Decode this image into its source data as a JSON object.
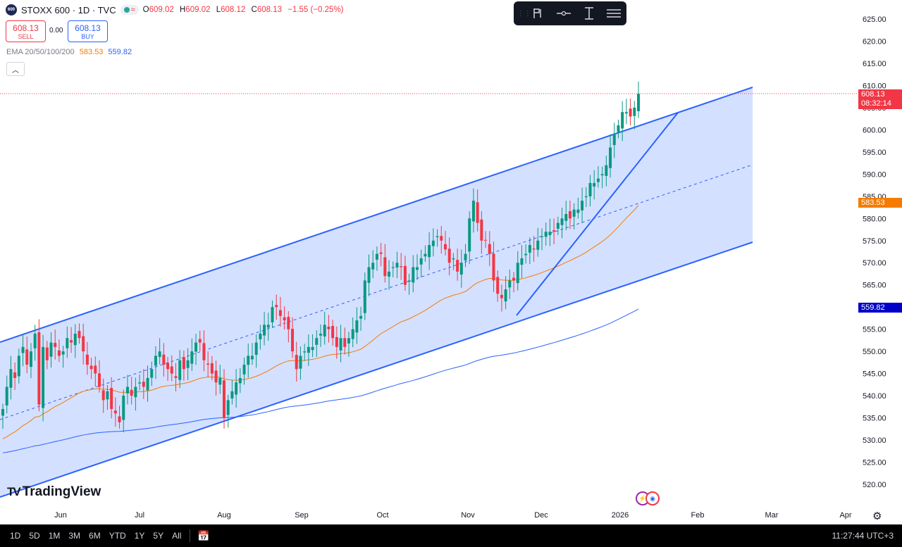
{
  "header": {
    "symbol_logo": "600",
    "title": "STOXX 600 · 1D · TVC",
    "market_status_icons": [
      "market-open-icon",
      "approximate-icon"
    ],
    "open_label": "O",
    "open": "609.02",
    "high_label": "H",
    "high": "609.02",
    "low_label": "L",
    "low": "608.12",
    "close_label": "C",
    "close": "608.13",
    "change": "−1.55 (−0.25%)"
  },
  "trade": {
    "sell_price": "608.13",
    "sell_label": "SELL",
    "spread": "0.00",
    "buy_price": "608.13",
    "buy_label": "BUY"
  },
  "indicator": {
    "name": "EMA 20/50/100/200",
    "ema50": "583.53",
    "ema200": "559.82"
  },
  "collapse_icon": "chevron-up-icon",
  "toolbar": {
    "items": [
      "drag-handle-icon",
      "flag-icon",
      "line-tool-icon",
      "measure-icon",
      "settings-lines-icon"
    ]
  },
  "price_labels": {
    "current_price": "608.13",
    "countdown": "08:32:14",
    "ema50_label": "583.53",
    "ema200_label": "559.82"
  },
  "colors": {
    "up": "#089981",
    "down": "#f23645",
    "channel": "#2962ff",
    "ema50": "#f57c00",
    "ema200": "#2962ff"
  },
  "branding": "TradingView",
  "bottom_bar": {
    "timeframes": [
      "1D",
      "5D",
      "1M",
      "3M",
      "6M",
      "YTD",
      "1Y",
      "5Y",
      "All"
    ],
    "clock": "11:27:44 UTC+3"
  },
  "chart_data": {
    "type": "candlestick",
    "title": "STOXX 600 · 1D · TVC",
    "xlabel": "",
    "ylabel": "",
    "x_ticks": [
      "Jun",
      "Jul",
      "Aug",
      "Sep",
      "Oct",
      "Nov",
      "Dec",
      "2026",
      "Feb",
      "Mar",
      "Apr"
    ],
    "y_ticks": [
      625,
      620,
      615,
      610,
      605,
      600,
      595,
      590,
      585,
      580,
      575,
      570,
      565,
      560,
      555,
      550,
      545,
      540,
      535,
      530,
      525,
      520
    ],
    "ylim": [
      518,
      628
    ],
    "grid": false,
    "legend": "top-left",
    "annotations": [
      "parallel channel",
      "rising trendline"
    ],
    "candles_close": [
      537,
      542,
      546,
      544,
      549,
      551,
      547,
      550,
      554,
      538,
      551,
      548,
      552,
      551,
      549,
      550,
      553,
      552,
      554,
      553,
      550,
      547,
      546,
      545,
      542,
      539,
      541,
      537,
      536,
      534,
      540,
      542,
      540,
      542,
      543,
      542,
      544,
      546,
      549,
      550,
      547,
      546,
      545,
      544,
      548,
      546,
      548,
      550,
      552,
      552,
      548,
      547,
      545,
      543,
      544,
      535,
      539,
      541,
      543,
      544,
      547,
      549,
      549,
      552,
      554,
      556,
      556,
      560,
      560,
      558,
      557,
      555,
      550,
      546,
      549,
      550,
      551,
      551,
      553,
      554,
      556,
      555,
      553,
      551,
      553,
      551,
      553,
      555,
      557,
      558,
      566,
      569,
      570,
      572,
      572,
      567,
      568,
      569,
      570,
      569,
      565,
      566,
      569,
      569,
      571,
      572,
      574,
      575,
      576,
      575,
      573,
      570,
      571,
      568,
      570,
      572,
      580,
      584,
      579,
      575,
      575,
      572,
      566,
      563,
      562,
      564,
      566,
      566,
      570,
      571,
      572,
      574,
      573,
      575,
      576,
      577,
      577,
      577,
      579,
      580,
      581,
      580,
      582,
      582,
      584,
      585,
      588,
      588,
      589,
      590,
      592,
      596,
      599,
      601,
      604,
      604,
      603,
      605,
      608.13
    ],
    "series": [
      {
        "name": "EMA 50",
        "last": 583.53
      },
      {
        "name": "EMA 200",
        "last": 559.82
      }
    ]
  }
}
